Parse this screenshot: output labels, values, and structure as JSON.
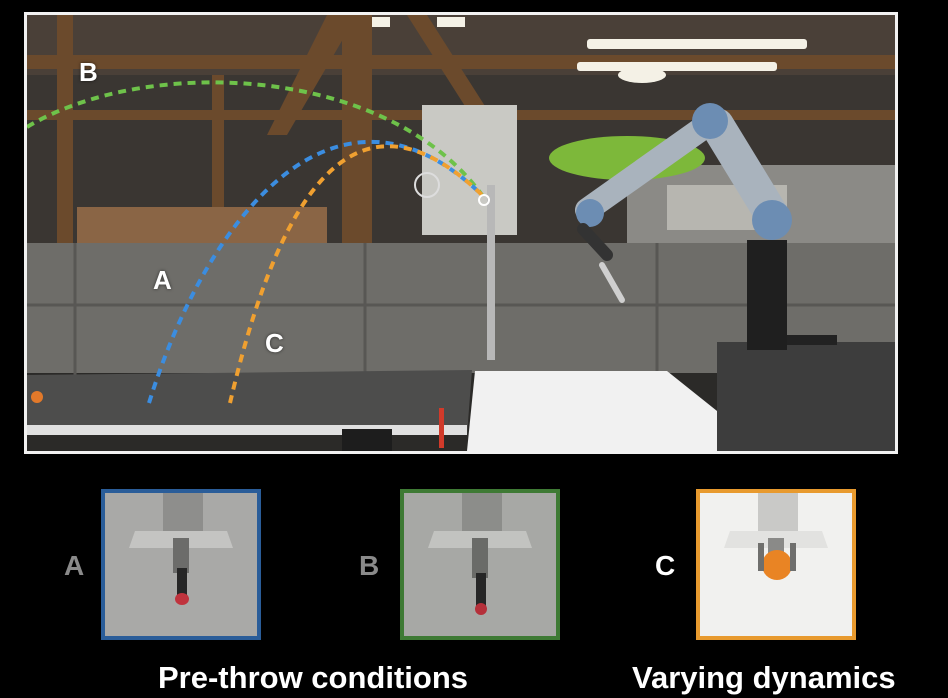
{
  "scene": {
    "trajectory_labels": {
      "a": "A",
      "b": "B",
      "c": "C"
    },
    "trajectory_colors": {
      "a": "#3b8de0",
      "b": "#6ec24a",
      "c": "#f0a030"
    }
  },
  "thumbnails": [
    {
      "letter": "A",
      "letter_color": "#8a8a8a",
      "border_color": "#2a5d99",
      "object": "red-handled screwdriver"
    },
    {
      "letter": "B",
      "letter_color": "#8a8a8a",
      "border_color": "#3e7a34",
      "object": "red-handled screwdriver"
    },
    {
      "letter": "C",
      "letter_color": "#ffffff",
      "border_color": "#e89a2e",
      "object": "orange ball"
    }
  ],
  "captions": {
    "pre_throw": "Pre-throw conditions",
    "dynamics": "Varying dynamics"
  }
}
